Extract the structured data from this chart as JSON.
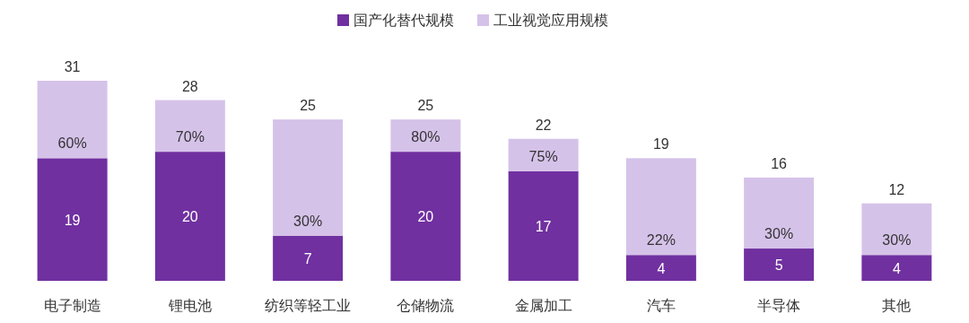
{
  "chart_data": {
    "type": "bar",
    "stacked": true,
    "legend": "top",
    "categories": [
      "电子制造",
      "锂电池",
      "纺织等轻工业",
      "仓储物流",
      "金属加工",
      "汽车",
      "半导体",
      "其他"
    ],
    "series": [
      {
        "name": "国产化替代规模",
        "color": "#7030a0",
        "values": [
          19,
          20,
          7,
          20,
          17,
          4,
          5,
          4
        ],
        "value_labels": [
          "19",
          "20",
          "7",
          "20",
          "17",
          "4",
          "5",
          "4"
        ]
      },
      {
        "name": "工业视觉应用规模",
        "color": "#d5c2e9",
        "values": [
          12,
          8,
          18,
          5,
          5,
          15,
          11,
          8
        ]
      }
    ],
    "annotations": [
      {
        "text": "60%",
        "x": "电子制造",
        "y": 19
      },
      {
        "text": "70%",
        "x": "锂电池",
        "y": 20
      },
      {
        "text": "30%",
        "x": "纺织等轻工业",
        "y": 7
      },
      {
        "text": "80%",
        "x": "仓储物流",
        "y": 20
      },
      {
        "text": "75%",
        "x": "金属加工",
        "y": 17
      },
      {
        "text": "22%",
        "x": "汽车",
        "y": 4
      },
      {
        "text": "30%",
        "x": "半导体",
        "y": 5
      },
      {
        "text": "30%",
        "x": "其他",
        "y": 4
      }
    ],
    "totals": [
      "31",
      "28",
      "25",
      "25",
      "22",
      "19",
      "16",
      "12"
    ]
  }
}
